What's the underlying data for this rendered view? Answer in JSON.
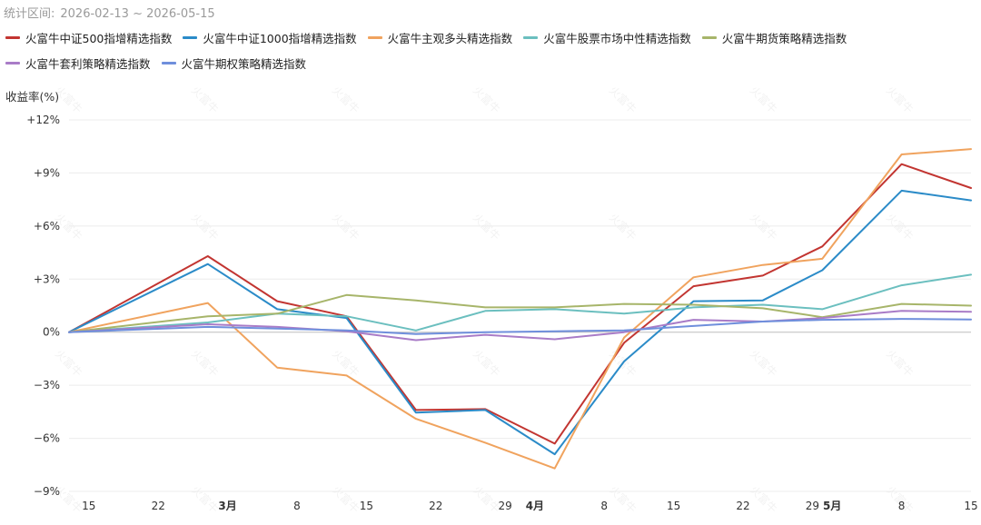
{
  "header": {
    "range_label": "统计区间:",
    "range_value": "2026-02-13 ~ 2026-05-15"
  },
  "chart_data": {
    "type": "line",
    "title": "",
    "ylabel": "收益率(%)",
    "ylim": [
      -9,
      12
    ],
    "yticks": [
      12,
      9,
      6,
      3,
      0,
      -3,
      -6,
      -9
    ],
    "ytick_labels": [
      "+12%",
      "+9%",
      "+6%",
      "+3%",
      "0%",
      "−3%",
      "−6%",
      "−9%"
    ],
    "grid": true,
    "legend_position": "top",
    "x_start": "2026-02-13",
    "x_end": "2026-05-15",
    "x_ticks": [
      {
        "date": "2026-02-15",
        "label": "15",
        "bold": false
      },
      {
        "date": "2026-02-22",
        "label": "22",
        "bold": false
      },
      {
        "date": "2026-03-01",
        "label": "3月",
        "bold": true
      },
      {
        "date": "2026-03-08",
        "label": "8",
        "bold": false
      },
      {
        "date": "2026-03-15",
        "label": "15",
        "bold": false
      },
      {
        "date": "2026-03-22",
        "label": "22",
        "bold": false
      },
      {
        "date": "2026-03-29",
        "label": "29",
        "bold": false
      },
      {
        "date": "2026-04-01",
        "label": "4月",
        "bold": true
      },
      {
        "date": "2026-04-08",
        "label": "8",
        "bold": false
      },
      {
        "date": "2026-04-15",
        "label": "15",
        "bold": false
      },
      {
        "date": "2026-04-22",
        "label": "22",
        "bold": false
      },
      {
        "date": "2026-04-29",
        "label": "29",
        "bold": false
      },
      {
        "date": "2026-05-01",
        "label": "5月",
        "bold": true
      },
      {
        "date": "2026-05-08",
        "label": "8",
        "bold": false
      },
      {
        "date": "2026-05-15",
        "label": "15",
        "bold": false
      }
    ],
    "x": [
      "2026-02-13",
      "2026-02-27",
      "2026-03-06",
      "2026-03-13",
      "2026-03-20",
      "2026-03-27",
      "2026-04-03",
      "2026-04-10",
      "2026-04-17",
      "2026-04-24",
      "2026-04-30",
      "2026-05-08",
      "2026-05-15"
    ],
    "series": [
      {
        "name": "火富牛中证500指增精选指数",
        "color": "#c23531",
        "values": [
          0,
          4.3,
          1.75,
          0.9,
          -4.4,
          -4.35,
          -6.3,
          -0.6,
          2.6,
          3.2,
          4.85,
          9.5,
          8.15
        ]
      },
      {
        "name": "火富牛中证1000指增精选指数",
        "color": "#2b8bc8",
        "values": [
          0,
          3.85,
          1.3,
          0.8,
          -4.55,
          -4.4,
          -6.9,
          -1.65,
          1.75,
          1.8,
          3.5,
          8.0,
          7.45
        ]
      },
      {
        "name": "火富牛主观多头精选指数",
        "color": "#f0a35e",
        "values": [
          0,
          1.65,
          -2.0,
          -2.45,
          -4.9,
          -6.25,
          -7.7,
          -0.3,
          3.1,
          3.8,
          4.15,
          10.05,
          10.35
        ]
      },
      {
        "name": "火富牛股票市场中性精选指数",
        "color": "#6bbfbf",
        "values": [
          0,
          0.55,
          1.05,
          0.9,
          0.1,
          1.2,
          1.3,
          1.05,
          1.4,
          1.55,
          1.3,
          2.65,
          3.25
        ]
      },
      {
        "name": "火富牛期货策略精选指数",
        "color": "#a7b56a",
        "values": [
          0,
          0.9,
          1.05,
          2.1,
          1.8,
          1.4,
          1.4,
          1.6,
          1.55,
          1.35,
          0.85,
          1.6,
          1.5
        ]
      },
      {
        "name": "火富牛套利策略精选指数",
        "color": "#a97cc7",
        "values": [
          0,
          0.45,
          0.3,
          0.05,
          -0.45,
          -0.15,
          -0.4,
          0.0,
          0.7,
          0.6,
          0.8,
          1.2,
          1.15
        ]
      },
      {
        "name": "火富牛期权策略精选指数",
        "color": "#6f8fdc",
        "values": [
          0,
          0.3,
          0.2,
          0.1,
          -0.1,
          0.0,
          0.05,
          0.1,
          0.35,
          0.6,
          0.7,
          0.75,
          0.72
        ]
      }
    ],
    "watermark": "火富牛"
  }
}
